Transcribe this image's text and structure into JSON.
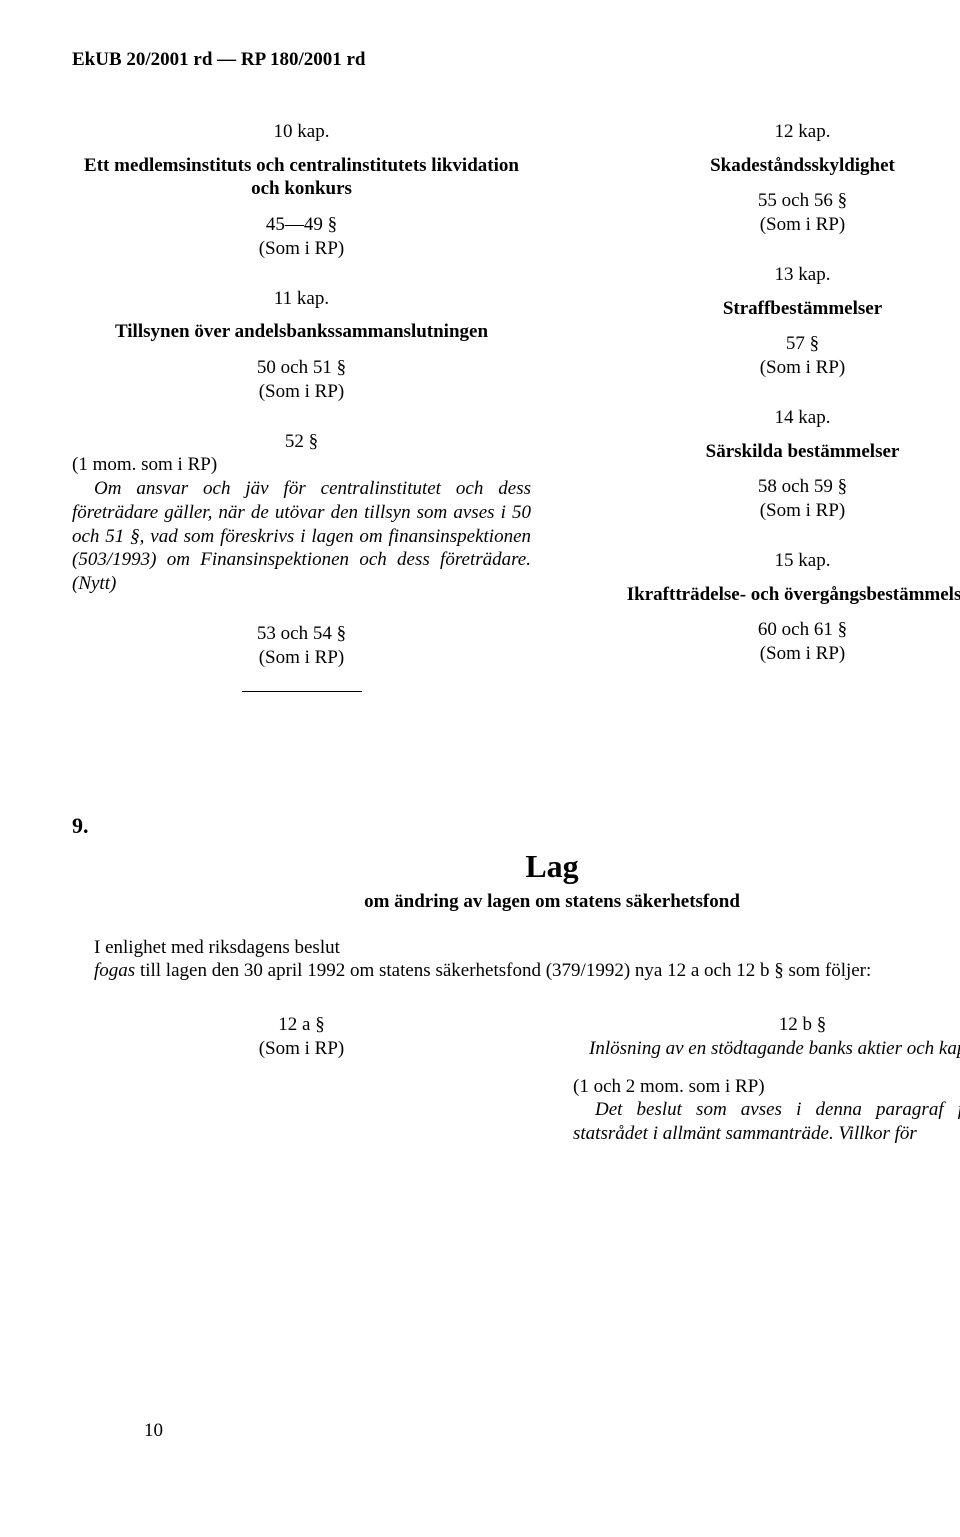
{
  "header": "EkUB 20/2001 rd — RP 180/2001 rd",
  "left": {
    "kap10": "10 kap.",
    "h1": "Ett medlemsinstituts och centralinstitutets likvidation och konkurs",
    "s45_49": "45—49 §",
    "somirp": "(Som i RP)",
    "kap11": "11 kap.",
    "h2": "Tillsynen över andelsbankssammanslutningen",
    "s50_51": "50 och 51 §",
    "s52": "52 §",
    "mom1": "(1 mom. som i RP)",
    "para52": "Om ansvar och jäv för centralinstitutet och dess företrädare gäller, när de utövar den tillsyn som avses i 50 och 51 §, vad som föreskrivs i lagen om finansinspektionen (503/1993) om Finansinspektionen och dess företrädare. (Nytt)",
    "s53_54": "53 och 54 §"
  },
  "right": {
    "kap12": "12 kap.",
    "h12": "Skadeståndsskyldighet",
    "s55_56": "55 och 56 §",
    "kap13": "13 kap.",
    "h13": "Straffbestämmelser",
    "s57": "57 §",
    "kap14": "14 kap.",
    "h14": "Särskilda bestämmelser",
    "s58_59": "58 och 59 §",
    "kap15": "15 kap.",
    "h15": "Ikraftträdelse- och övergångsbestämmelser",
    "s60_61": "60 och 61 §",
    "somirp": "(Som i RP)"
  },
  "law": {
    "num": "9.",
    "title": "Lag",
    "sub": "om ändring av lagen om statens säkerhetsfond",
    "ingress_plain": "I enlighet med riksdagens beslut",
    "ingress_italic_pre": "fogas",
    "ingress_rest": " till lagen den 30 april 1992 om statens säkerhetsfond (379/1992) nya 12 a och 12 b § som följer:"
  },
  "lower_left": {
    "s12a": "12 a §",
    "somirp": "(Som i RP)"
  },
  "lower_right": {
    "s12b": "12 b §",
    "h": "Inlösning av en stödtagande banks aktier och kapitallån",
    "p1": "(1 och 2 mom. som i RP)",
    "p2": "Det beslut som avses i denna paragraf fattas av statsrådet i allmänt sammanträde. Villkor för"
  },
  "page_number": "10"
}
